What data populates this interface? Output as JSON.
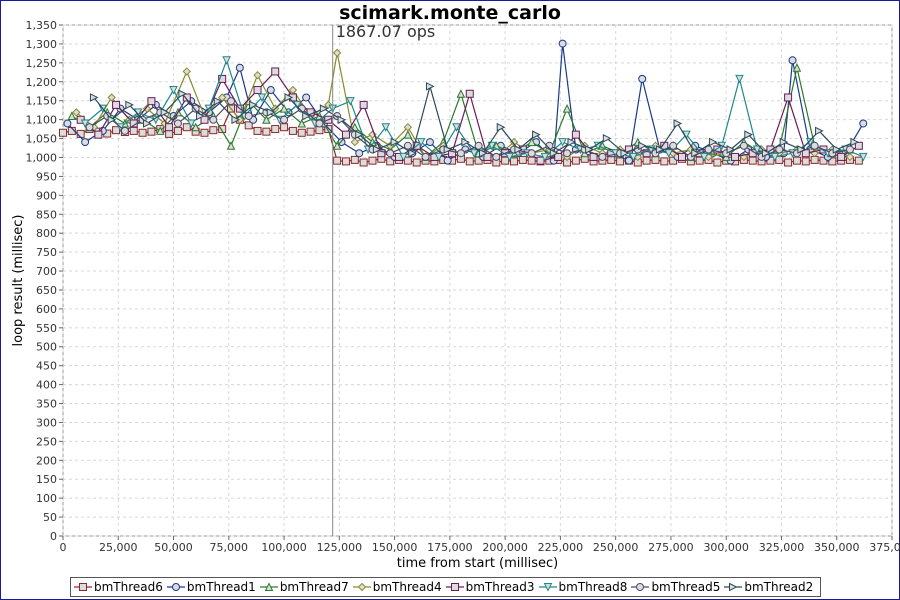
{
  "chart_data": {
    "type": "line",
    "title": "scimark.monte_carlo",
    "xlabel": "time from start (millisec)",
    "ylabel": "loop result (millisec)",
    "xlim": [
      0,
      375000
    ],
    "ylim": [
      0,
      1375
    ],
    "x_ticks": [
      "0",
      "25,000",
      "50,000",
      "75,000",
      "100,000",
      "125,000",
      "150,000",
      "175,000",
      "200,000",
      "225,000",
      "250,000",
      "275,000",
      "300,000",
      "325,000",
      "350,000",
      "375,000"
    ],
    "y_ticks": [
      "0",
      "50",
      "100",
      "150",
      "200",
      "250",
      "300",
      "350",
      "400",
      "450",
      "500",
      "550",
      "600",
      "650",
      "700",
      "750",
      "800",
      "850",
      "900",
      "950",
      "1,000",
      "1,050",
      "1,100",
      "1,150",
      "1,200",
      "1,250",
      "1,300",
      "1,350"
    ],
    "grid": true,
    "legend_position": "bottom",
    "marker_annotation": {
      "x": 122000,
      "label": "1867.07 ops"
    },
    "series": [
      {
        "name": "bmThread6",
        "marker": "square",
        "color": "#8b2a2a",
        "x": [
          0,
          4000,
          8000,
          12000,
          16000,
          20000,
          24000,
          28000,
          32000,
          36000,
          40000,
          44000,
          48000,
          52000,
          56000,
          60000,
          64000,
          68000,
          72000,
          76000,
          80000,
          84000,
          88000,
          92000,
          96000,
          100000,
          104000,
          108000,
          112000,
          116000,
          120000,
          124000,
          128000,
          132000,
          136000,
          140000,
          144000,
          148000,
          152000,
          156000,
          160000,
          164000,
          168000,
          172000,
          176000,
          180000,
          184000,
          188000,
          192000,
          196000,
          200000,
          204000,
          208000,
          212000,
          216000,
          220000,
          224000,
          228000,
          232000,
          236000,
          240000,
          244000,
          248000,
          252000,
          256000,
          260000,
          264000,
          268000,
          272000,
          276000,
          280000,
          284000,
          288000,
          292000,
          296000,
          300000,
          304000,
          308000,
          312000,
          316000,
          320000,
          324000,
          328000,
          332000,
          336000,
          340000,
          344000,
          348000,
          352000,
          356000,
          360000
        ],
        "values": [
          1085,
          1090,
          1082,
          1095,
          1088,
          1083,
          1092,
          1087,
          1090,
          1085,
          1088,
          1095,
          1082,
          1090,
          1100,
          1088,
          1085,
          1092,
          1095,
          1150,
          1120,
          1105,
          1090,
          1088,
          1095,
          1100,
          1090,
          1085,
          1088,
          1092,
          1095,
          1010,
          1008,
          1012,
          1005,
          1010,
          1015,
          1008,
          1012,
          1010,
          1005,
          1010,
          1008,
          1012,
          1010,
          1015,
          1008,
          1010,
          1012,
          1005,
          1010,
          1008,
          1012,
          1010,
          1008,
          1010,
          1012,
          1005,
          1010,
          1015,
          1008,
          1010,
          1012,
          1008,
          1010,
          1005,
          1010,
          1012,
          1008,
          1010,
          1015,
          1008,
          1010,
          1012,
          1005,
          1010,
          1008,
          1012,
          1010,
          1008,
          1010,
          1012,
          1005,
          1010,
          1008,
          1012,
          1010,
          1008,
          1010,
          1012,
          1010
        ]
      },
      {
        "name": "bmThread1",
        "marker": "circle",
        "color": "#1a3a8a",
        "x": [
          2000,
          10000,
          18000,
          26000,
          34000,
          42000,
          50000,
          58000,
          66000,
          74000,
          80000,
          86000,
          94000,
          102000,
          110000,
          118000,
          126000,
          134000,
          142000,
          150000,
          158000,
          166000,
          174000,
          182000,
          190000,
          198000,
          206000,
          214000,
          222000,
          226000,
          232000,
          240000,
          248000,
          256000,
          262000,
          270000,
          278000,
          286000,
          294000,
          302000,
          310000,
          318000,
          326000,
          330000,
          338000,
          346000,
          354000,
          362000
        ],
        "values": [
          1110,
          1060,
          1090,
          1150,
          1120,
          1160,
          1130,
          1170,
          1140,
          1180,
          1260,
          1120,
          1200,
          1140,
          1180,
          1110,
          1060,
          1030,
          1050,
          1020,
          1030,
          1060,
          1010,
          1040,
          1020,
          1050,
          1030,
          1060,
          1010,
          1325,
          1040,
          1020,
          1030,
          1010,
          1230,
          1040,
          1020,
          1050,
          1030,
          1010,
          1040,
          1020,
          1030,
          1280,
          1040,
          1020,
          1030,
          1110
        ]
      },
      {
        "name": "bmThread7",
        "marker": "triangle-up",
        "color": "#2a7a2a",
        "x": [
          4000,
          12000,
          20000,
          28000,
          36000,
          44000,
          52000,
          60000,
          68000,
          76000,
          84000,
          92000,
          100000,
          108000,
          116000,
          124000,
          132000,
          140000,
          148000,
          156000,
          164000,
          172000,
          180000,
          188000,
          196000,
          204000,
          212000,
          220000,
          228000,
          236000,
          244000,
          252000,
          260000,
          268000,
          276000,
          284000,
          292000,
          300000,
          308000,
          316000,
          324000,
          332000,
          340000,
          348000,
          356000
        ],
        "values": [
          1130,
          1100,
          1140,
          1110,
          1120,
          1090,
          1140,
          1100,
          1130,
          1050,
          1170,
          1120,
          1150,
          1110,
          1130,
          1050,
          1100,
          1060,
          1040,
          1080,
          1020,
          1060,
          1190,
          1030,
          1050,
          1030,
          1060,
          1030,
          1150,
          1030,
          1050,
          1030,
          1060,
          1030,
          1050,
          1020,
          1030,
          1020,
          1060,
          1030,
          1040,
          1260,
          1050,
          1030,
          1040
        ]
      },
      {
        "name": "bmThread4",
        "marker": "diamond",
        "color": "#8a8a2a",
        "x": [
          6000,
          14000,
          22000,
          30000,
          38000,
          46000,
          56000,
          64000,
          72000,
          80000,
          88000,
          96000,
          104000,
          112000,
          120000,
          124000,
          132000,
          140000,
          148000,
          156000,
          164000,
          172000,
          180000,
          188000,
          196000,
          204000,
          212000,
          220000,
          228000,
          236000,
          244000,
          252000,
          260000,
          268000,
          276000,
          284000,
          292000,
          300000,
          308000,
          316000,
          324000,
          332000,
          340000,
          348000,
          356000
        ],
        "values": [
          1140,
          1100,
          1180,
          1120,
          1150,
          1110,
          1250,
          1130,
          1180,
          1120,
          1240,
          1150,
          1200,
          1130,
          1160,
          1300,
          1060,
          1080,
          1050,
          1100,
          1020,
          1050,
          1030,
          1050,
          1020,
          1060,
          1030,
          1040,
          1020,
          1050,
          1030,
          1040,
          1020,
          1050,
          1030,
          1040,
          1020,
          1030,
          1020,
          1040,
          1030,
          1040,
          1030,
          1040,
          1020
        ]
      },
      {
        "name": "bmThread3",
        "marker": "square-bar",
        "color": "#6a1a5a",
        "x": [
          8000,
          16000,
          24000,
          32000,
          40000,
          48000,
          56000,
          64000,
          72000,
          80000,
          88000,
          96000,
          104000,
          112000,
          120000,
          128000,
          136000,
          144000,
          152000,
          160000,
          168000,
          176000,
          184000,
          192000,
          200000,
          208000,
          216000,
          224000,
          232000,
          240000,
          248000,
          256000,
          264000,
          272000,
          280000,
          288000,
          296000,
          304000,
          312000,
          320000,
          328000,
          336000,
          344000,
          352000,
          360000
        ],
        "values": [
          1120,
          1080,
          1160,
          1110,
          1170,
          1100,
          1180,
          1120,
          1230,
          1150,
          1200,
          1250,
          1180,
          1140,
          1120,
          1080,
          1160,
          1030,
          1020,
          1050,
          1020,
          1030,
          1190,
          1020,
          1030,
          1040,
          1010,
          1020,
          1080,
          1020,
          1030,
          1040,
          1030,
          1050,
          1020,
          1030,
          1040,
          1020,
          1030,
          1040,
          1180,
          1030,
          1040,
          1020,
          1050
        ]
      },
      {
        "name": "bmThread8",
        "marker": "triangle-down",
        "color": "#1a8a8a",
        "x": [
          10000,
          18000,
          26000,
          34000,
          42000,
          50000,
          58000,
          66000,
          74000,
          82000,
          90000,
          98000,
          106000,
          114000,
          122000,
          130000,
          138000,
          146000,
          154000,
          162000,
          170000,
          178000,
          186000,
          194000,
          202000,
          210000,
          218000,
          226000,
          234000,
          242000,
          250000,
          258000,
          266000,
          274000,
          282000,
          290000,
          298000,
          306000,
          314000,
          322000,
          330000,
          338000,
          346000,
          354000,
          362000
        ],
        "values": [
          1110,
          1150,
          1100,
          1140,
          1120,
          1200,
          1110,
          1150,
          1280,
          1130,
          1180,
          1120,
          1160,
          1110,
          1150,
          1170,
          1040,
          1100,
          1020,
          1060,
          1020,
          1100,
          1030,
          1050,
          1020,
          1030,
          1020,
          1060,
          1040,
          1050,
          1030,
          1020,
          1040,
          1030,
          1080,
          1020,
          1050,
          1230,
          1040,
          1020,
          1030,
          1060,
          1030,
          1040,
          1020
        ]
      },
      {
        "name": "bmThread5",
        "marker": "circle-bar",
        "color": "#4a4a6a",
        "x": [
          12000,
          20000,
          28000,
          36000,
          44000,
          52000,
          60000,
          68000,
          76000,
          84000,
          92000,
          100000,
          108000,
          116000,
          124000,
          132000,
          140000,
          148000,
          156000,
          164000,
          172000,
          180000,
          188000,
          196000,
          204000,
          212000,
          220000,
          228000,
          236000,
          244000,
          252000,
          260000,
          268000,
          276000,
          284000,
          292000,
          300000,
          308000,
          316000,
          324000,
          332000,
          340000,
          348000,
          356000
        ],
        "values": [
          1100,
          1130,
          1090,
          1120,
          1140,
          1110,
          1150,
          1120,
          1170,
          1130,
          1140,
          1120,
          1150,
          1110,
          1130,
          1080,
          1040,
          1030,
          1050,
          1020,
          1040,
          1030,
          1050,
          1020,
          1040,
          1030,
          1050,
          1030,
          1040,
          1020,
          1030,
          1040,
          1030,
          1050,
          1020,
          1040,
          1030,
          1050,
          1020,
          1040,
          1030,
          1050,
          1030,
          1040
        ]
      },
      {
        "name": "bmThread2",
        "marker": "triangle-right",
        "color": "#2a4a5a",
        "x": [
          14000,
          22000,
          30000,
          38000,
          46000,
          54000,
          62000,
          70000,
          78000,
          86000,
          94000,
          102000,
          110000,
          118000,
          126000,
          134000,
          142000,
          150000,
          158000,
          166000,
          174000,
          182000,
          190000,
          198000,
          206000,
          214000,
          222000,
          230000,
          238000,
          246000,
          254000,
          262000,
          270000,
          278000,
          286000,
          294000,
          302000,
          310000,
          318000,
          326000,
          334000,
          342000,
          350000,
          358000
        ],
        "values": [
          1180,
          1120,
          1160,
          1110,
          1140,
          1190,
          1130,
          1170,
          1120,
          1160,
          1140,
          1180,
          1130,
          1150,
          1120,
          1080,
          1040,
          1060,
          1030,
          1210,
          1040,
          1060,
          1030,
          1100,
          1040,
          1080,
          1030,
          1060,
          1040,
          1070,
          1030,
          1050,
          1040,
          1110,
          1030,
          1060,
          1040,
          1080,
          1030,
          1060,
          1040,
          1090,
          1040,
          1060
        ]
      }
    ]
  }
}
